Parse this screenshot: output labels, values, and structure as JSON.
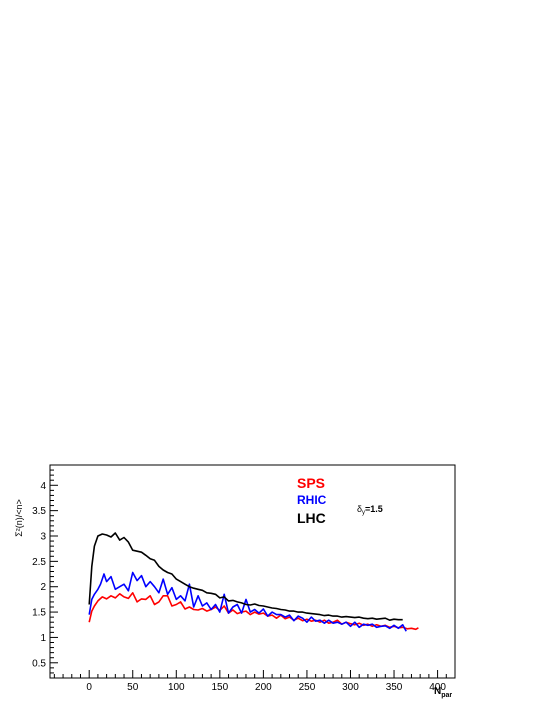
{
  "chart_data": {
    "type": "line",
    "title": "",
    "xlabel": "N",
    "xlabel_sub": "par",
    "ylabel": "Σ²(n)/<n>",
    "xlim": [
      -45,
      420
    ],
    "ylim": [
      0.2,
      4.4
    ],
    "xticks": [
      0,
      50,
      100,
      150,
      200,
      250,
      300,
      350,
      400
    ],
    "yticks": [
      0.5,
      1,
      1.5,
      2,
      2.5,
      3,
      3.5,
      4
    ],
    "grid": false,
    "legend_position": "top-center",
    "annotation": "δy=1.5",
    "annotation_main": "δ",
    "annotation_sub": "y",
    "annotation_rest": "=1.5",
    "series": [
      {
        "name": "SPS",
        "color": "#ff0000",
        "x": [
          0,
          3,
          6,
          10,
          15,
          20,
          25,
          30,
          35,
          40,
          45,
          50,
          55,
          60,
          65,
          70,
          75,
          80,
          85,
          90,
          95,
          100,
          105,
          110,
          115,
          120,
          125,
          130,
          135,
          140,
          145,
          150,
          155,
          160,
          165,
          170,
          175,
          180,
          185,
          190,
          195,
          200,
          205,
          210,
          215,
          220,
          225,
          230,
          235,
          240,
          245,
          250,
          255,
          260,
          265,
          270,
          275,
          280,
          285,
          290,
          295,
          300,
          305,
          310,
          315,
          320,
          325,
          330,
          335,
          340,
          345,
          350,
          355,
          360,
          365,
          370,
          375,
          378
        ],
        "values": [
          1.3,
          1.52,
          1.62,
          1.72,
          1.8,
          1.76,
          1.82,
          1.78,
          1.86,
          1.8,
          1.77,
          1.88,
          1.7,
          1.76,
          1.75,
          1.82,
          1.65,
          1.7,
          1.82,
          1.82,
          1.62,
          1.65,
          1.7,
          1.56,
          1.6,
          1.55,
          1.54,
          1.57,
          1.52,
          1.55,
          1.6,
          1.53,
          1.62,
          1.48,
          1.54,
          1.47,
          1.5,
          1.52,
          1.45,
          1.5,
          1.46,
          1.48,
          1.42,
          1.44,
          1.38,
          1.44,
          1.37,
          1.4,
          1.34,
          1.38,
          1.33,
          1.36,
          1.32,
          1.34,
          1.3,
          1.34,
          1.28,
          1.3,
          1.34,
          1.26,
          1.3,
          1.27,
          1.25,
          1.28,
          1.24,
          1.26,
          1.22,
          1.25,
          1.22,
          1.24,
          1.2,
          1.22,
          1.19,
          1.2,
          1.17,
          1.18,
          1.16,
          1.19
        ]
      },
      {
        "name": "RHIC",
        "color": "#0000ff",
        "x": [
          0,
          3,
          6,
          10,
          13,
          17,
          20,
          25,
          30,
          35,
          40,
          45,
          50,
          55,
          60,
          65,
          70,
          75,
          80,
          85,
          90,
          95,
          100,
          105,
          110,
          115,
          120,
          125,
          130,
          135,
          140,
          145,
          150,
          155,
          160,
          165,
          170,
          175,
          180,
          185,
          190,
          195,
          200,
          205,
          210,
          215,
          220,
          225,
          230,
          235,
          240,
          245,
          250,
          255,
          260,
          265,
          270,
          275,
          280,
          285,
          290,
          295,
          300,
          305,
          310,
          315,
          320,
          325,
          330,
          335,
          340,
          345,
          350,
          355,
          360,
          364
        ],
        "values": [
          1.45,
          1.75,
          1.85,
          1.95,
          2.05,
          2.25,
          2.1,
          2.2,
          1.95,
          2.0,
          2.05,
          1.92,
          2.28,
          2.12,
          2.22,
          2.0,
          2.1,
          2.0,
          1.88,
          2.15,
          1.85,
          1.98,
          1.75,
          1.82,
          1.72,
          2.05,
          1.6,
          1.82,
          1.62,
          1.68,
          1.55,
          1.65,
          1.5,
          1.85,
          1.48,
          1.6,
          1.65,
          1.48,
          1.75,
          1.5,
          1.55,
          1.48,
          1.56,
          1.42,
          1.5,
          1.45,
          1.45,
          1.4,
          1.44,
          1.33,
          1.42,
          1.38,
          1.3,
          1.4,
          1.32,
          1.34,
          1.28,
          1.34,
          1.28,
          1.3,
          1.26,
          1.3,
          1.22,
          1.3,
          1.2,
          1.26,
          1.24,
          1.26,
          1.2,
          1.22,
          1.23,
          1.18,
          1.24,
          1.18,
          1.25,
          1.12
        ]
      },
      {
        "name": "LHC",
        "color": "#000000",
        "x": [
          0,
          3,
          6,
          10,
          15,
          20,
          25,
          30,
          35,
          40,
          45,
          50,
          55,
          60,
          65,
          70,
          75,
          80,
          85,
          90,
          95,
          100,
          105,
          110,
          115,
          120,
          125,
          130,
          135,
          140,
          145,
          150,
          155,
          160,
          165,
          170,
          175,
          180,
          185,
          190,
          195,
          200,
          205,
          210,
          215,
          220,
          225,
          230,
          235,
          240,
          245,
          250,
          255,
          260,
          265,
          270,
          275,
          280,
          285,
          290,
          295,
          300,
          305,
          310,
          315,
          320,
          325,
          330,
          335,
          340,
          345,
          350,
          355,
          360
        ],
        "values": [
          1.65,
          2.4,
          2.8,
          3.0,
          3.04,
          3.02,
          2.98,
          3.06,
          2.92,
          2.97,
          2.88,
          2.72,
          2.7,
          2.68,
          2.62,
          2.55,
          2.52,
          2.4,
          2.33,
          2.28,
          2.25,
          2.15,
          2.1,
          2.05,
          2.0,
          1.97,
          1.95,
          1.93,
          1.88,
          1.87,
          1.85,
          1.78,
          1.8,
          1.72,
          1.73,
          1.7,
          1.68,
          1.65,
          1.64,
          1.66,
          1.63,
          1.62,
          1.6,
          1.58,
          1.57,
          1.55,
          1.54,
          1.52,
          1.52,
          1.5,
          1.5,
          1.48,
          1.47,
          1.46,
          1.45,
          1.43,
          1.44,
          1.42,
          1.42,
          1.4,
          1.41,
          1.4,
          1.39,
          1.4,
          1.38,
          1.37,
          1.38,
          1.36,
          1.37,
          1.38,
          1.34,
          1.36,
          1.35,
          1.35
        ]
      }
    ]
  }
}
